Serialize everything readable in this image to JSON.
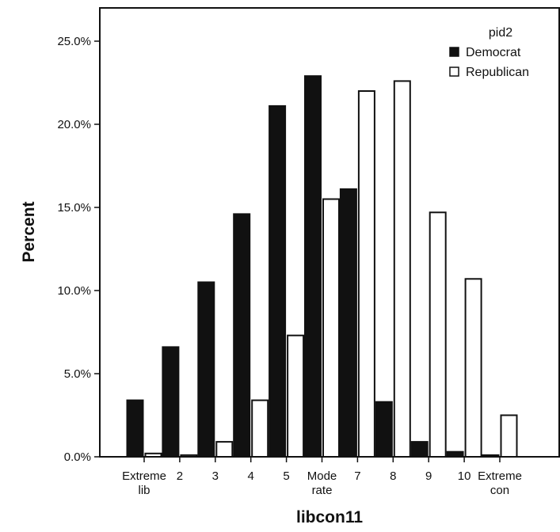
{
  "chart_data": {
    "type": "bar",
    "xlabel": "libcon11",
    "ylabel": "Percent",
    "ylim": [
      0,
      27
    ],
    "yticks": [
      "0.0%",
      "5.0%",
      "10.0%",
      "15.0%",
      "20.0%",
      "25.0%"
    ],
    "grid": false,
    "legend_position": "top-right",
    "legend_title": "pid2",
    "categories": [
      [
        "Extreme",
        "lib"
      ],
      [
        "2"
      ],
      [
        "3"
      ],
      [
        "4"
      ],
      [
        "5"
      ],
      [
        "Mode",
        "rate"
      ],
      [
        "7"
      ],
      [
        "8"
      ],
      [
        "9"
      ],
      [
        "10"
      ],
      [
        "Extreme",
        "con"
      ]
    ],
    "series": [
      {
        "name": "Democrat",
        "fill": "#111111",
        "values": [
          3.4,
          6.6,
          10.5,
          14.6,
          21.1,
          22.9,
          16.1,
          3.3,
          0.9,
          0.3,
          0.1
        ]
      },
      {
        "name": "Republican",
        "fill": "#ffffff",
        "values": [
          0.2,
          0.1,
          0.9,
          3.4,
          7.3,
          15.5,
          22.0,
          22.6,
          14.7,
          10.7,
          2.5
        ]
      }
    ]
  }
}
